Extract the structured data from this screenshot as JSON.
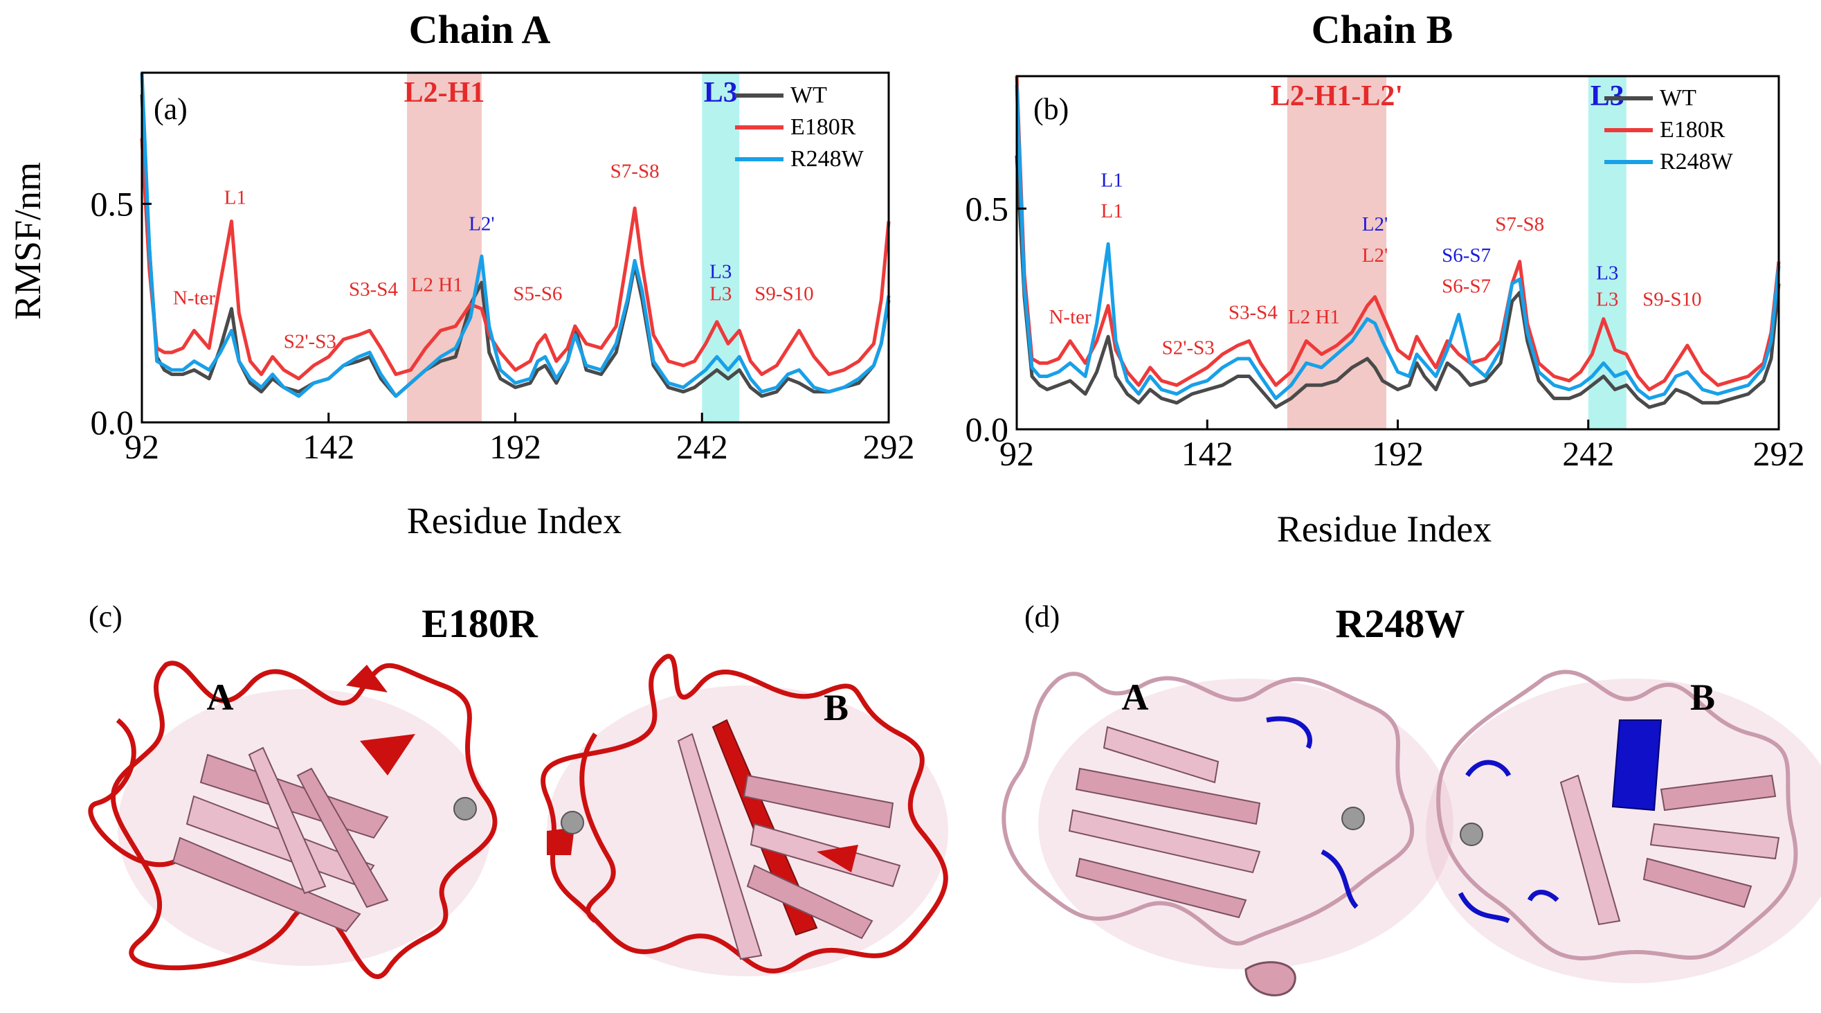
{
  "colors": {
    "wt": "#4a4a4a",
    "e180r": "#ee3a3a",
    "r248w": "#18a0e8",
    "red_text": "#e52a2a",
    "blue_text": "#1a1ad8",
    "region_pink": "#f2c9c6",
    "region_cyan": "#b5f3ef",
    "ribbon_pink": "#e9bccb",
    "ribbon_red": "#cc1010",
    "ribbon_blue": "#1010c8"
  },
  "chart_data": [
    {
      "type": "line",
      "panel": "(a)",
      "title": "Chain A",
      "xlabel": "Residue Index",
      "ylabel": "RMSF/nm",
      "xlim": [
        92,
        292
      ],
      "ylim": [
        0,
        0.8
      ],
      "xticks": [
        "92",
        "142",
        "192",
        "242",
        "292"
      ],
      "yticks": [
        "0.0",
        "0.5"
      ],
      "legend": [
        "WT",
        "E180R",
        "R248W"
      ],
      "regions": [
        {
          "label": "L2-H1",
          "x0": 163,
          "x1": 183,
          "color": "pink"
        },
        {
          "label": "L3",
          "x0": 242,
          "x1": 252,
          "color": "cyan"
        }
      ],
      "annotations": [
        {
          "text": "N-ter",
          "x": 106,
          "y": 0.27,
          "color": "red"
        },
        {
          "text": "L1",
          "x": 117,
          "y": 0.5,
          "color": "red"
        },
        {
          "text": "S2'-S3",
          "x": 137,
          "y": 0.17,
          "color": "red"
        },
        {
          "text": "S3-S4",
          "x": 154,
          "y": 0.29,
          "color": "red"
        },
        {
          "text": "L2 H1",
          "x": 171,
          "y": 0.3,
          "color": "red"
        },
        {
          "text": "L2'",
          "x": 183,
          "y": 0.44,
          "color": "blue"
        },
        {
          "text": "S5-S6",
          "x": 198,
          "y": 0.28,
          "color": "red"
        },
        {
          "text": "S7-S8",
          "x": 224,
          "y": 0.56,
          "color": "red"
        },
        {
          "text": "L3",
          "x": 247,
          "y": 0.33,
          "color": "blue"
        },
        {
          "text": "L3",
          "x": 247,
          "y": 0.28,
          "color": "red"
        },
        {
          "text": "S9-S10",
          "x": 264,
          "y": 0.28,
          "color": "red"
        }
      ],
      "series": [
        {
          "name": "WT",
          "x": [
            92,
            94,
            96,
            98,
            100,
            103,
            106,
            110,
            113,
            116,
            118,
            121,
            124,
            127,
            130,
            134,
            138,
            142,
            146,
            150,
            153,
            156,
            160,
            164,
            168,
            172,
            176,
            180,
            183,
            185,
            188,
            192,
            196,
            198,
            200,
            203,
            206,
            208,
            211,
            215,
            219,
            222,
            224,
            226,
            229,
            233,
            237,
            240,
            243,
            246,
            249,
            252,
            255,
            258,
            262,
            265,
            268,
            272,
            276,
            280,
            284,
            288,
            290,
            292
          ],
          "y": [
            0.75,
            0.4,
            0.15,
            0.12,
            0.11,
            0.11,
            0.12,
            0.1,
            0.17,
            0.26,
            0.14,
            0.09,
            0.07,
            0.1,
            0.08,
            0.07,
            0.09,
            0.1,
            0.13,
            0.14,
            0.15,
            0.1,
            0.06,
            0.09,
            0.12,
            0.14,
            0.15,
            0.27,
            0.32,
            0.16,
            0.1,
            0.08,
            0.09,
            0.12,
            0.13,
            0.09,
            0.14,
            0.22,
            0.12,
            0.11,
            0.16,
            0.27,
            0.36,
            0.28,
            0.13,
            0.08,
            0.07,
            0.08,
            0.1,
            0.12,
            0.1,
            0.12,
            0.08,
            0.06,
            0.07,
            0.1,
            0.09,
            0.07,
            0.07,
            0.08,
            0.09,
            0.13,
            0.18,
            0.28
          ]
        },
        {
          "name": "E180R",
          "x": [
            92,
            94,
            96,
            98,
            100,
            103,
            106,
            110,
            113,
            116,
            118,
            121,
            124,
            127,
            130,
            134,
            138,
            142,
            146,
            150,
            153,
            156,
            160,
            164,
            168,
            172,
            176,
            180,
            183,
            185,
            188,
            192,
            196,
            198,
            200,
            203,
            206,
            208,
            211,
            215,
            219,
            222,
            224,
            226,
            229,
            233,
            237,
            240,
            243,
            246,
            249,
            252,
            255,
            258,
            262,
            265,
            268,
            272,
            276,
            280,
            284,
            288,
            290,
            292
          ],
          "y": [
            0.65,
            0.35,
            0.17,
            0.16,
            0.16,
            0.17,
            0.21,
            0.17,
            0.32,
            0.46,
            0.25,
            0.14,
            0.11,
            0.15,
            0.12,
            0.1,
            0.13,
            0.15,
            0.19,
            0.2,
            0.21,
            0.17,
            0.11,
            0.12,
            0.17,
            0.21,
            0.22,
            0.27,
            0.26,
            0.2,
            0.16,
            0.12,
            0.14,
            0.18,
            0.2,
            0.14,
            0.17,
            0.22,
            0.18,
            0.17,
            0.22,
            0.38,
            0.49,
            0.36,
            0.2,
            0.14,
            0.13,
            0.14,
            0.18,
            0.23,
            0.18,
            0.21,
            0.14,
            0.11,
            0.13,
            0.17,
            0.21,
            0.15,
            0.11,
            0.12,
            0.14,
            0.18,
            0.28,
            0.46
          ]
        },
        {
          "name": "R248W",
          "x": [
            92,
            94,
            96,
            98,
            100,
            103,
            106,
            110,
            113,
            116,
            118,
            121,
            124,
            127,
            130,
            134,
            138,
            142,
            146,
            150,
            153,
            156,
            160,
            164,
            168,
            172,
            176,
            180,
            183,
            185,
            188,
            192,
            196,
            198,
            200,
            203,
            206,
            208,
            211,
            215,
            219,
            222,
            224,
            226,
            229,
            233,
            237,
            240,
            243,
            246,
            249,
            252,
            255,
            258,
            262,
            265,
            268,
            272,
            276,
            280,
            284,
            288,
            290,
            292
          ],
          "y": [
            0.8,
            0.4,
            0.14,
            0.13,
            0.12,
            0.12,
            0.14,
            0.12,
            0.16,
            0.21,
            0.14,
            0.1,
            0.08,
            0.11,
            0.08,
            0.06,
            0.09,
            0.1,
            0.13,
            0.15,
            0.16,
            0.11,
            0.06,
            0.09,
            0.12,
            0.15,
            0.17,
            0.24,
            0.38,
            0.22,
            0.12,
            0.09,
            0.1,
            0.14,
            0.15,
            0.1,
            0.14,
            0.2,
            0.13,
            0.12,
            0.18,
            0.28,
            0.37,
            0.3,
            0.14,
            0.09,
            0.08,
            0.1,
            0.12,
            0.15,
            0.12,
            0.15,
            0.1,
            0.07,
            0.08,
            0.11,
            0.12,
            0.08,
            0.07,
            0.08,
            0.1,
            0.13,
            0.18,
            0.29
          ]
        }
      ]
    },
    {
      "type": "line",
      "panel": "(b)",
      "title": "Chain B",
      "xlabel": "Residue Index",
      "ylabel": "",
      "xlim": [
        92,
        292
      ],
      "ylim": [
        0,
        0.8
      ],
      "xticks": [
        "92",
        "142",
        "192",
        "242",
        "292"
      ],
      "yticks": [
        "0.0",
        "0.5"
      ],
      "legend": [
        "WT",
        "E180R",
        "R248W"
      ],
      "regions": [
        {
          "label": "L2-H1-L2'",
          "x0": 163,
          "x1": 189,
          "color": "pink"
        },
        {
          "label": "L3",
          "x0": 242,
          "x1": 252,
          "color": "cyan"
        }
      ],
      "annotations": [
        {
          "text": "N-ter",
          "x": 106,
          "y": 0.24,
          "color": "red"
        },
        {
          "text": "L1",
          "x": 117,
          "y": 0.55,
          "color": "blue"
        },
        {
          "text": "L1",
          "x": 117,
          "y": 0.48,
          "color": "red"
        },
        {
          "text": "S2'-S3",
          "x": 137,
          "y": 0.17,
          "color": "red"
        },
        {
          "text": "S3-S4",
          "x": 154,
          "y": 0.25,
          "color": "red"
        },
        {
          "text": "L2 H1",
          "x": 170,
          "y": 0.24,
          "color": "red"
        },
        {
          "text": "L2'",
          "x": 186,
          "y": 0.45,
          "color": "blue"
        },
        {
          "text": "L2'",
          "x": 186,
          "y": 0.38,
          "color": "red"
        },
        {
          "text": "S6-S7",
          "x": 210,
          "y": 0.38,
          "color": "blue"
        },
        {
          "text": "S6-S7",
          "x": 210,
          "y": 0.31,
          "color": "red"
        },
        {
          "text": "S7-S8",
          "x": 224,
          "y": 0.45,
          "color": "red"
        },
        {
          "text": "L3",
          "x": 247,
          "y": 0.34,
          "color": "blue"
        },
        {
          "text": "L3",
          "x": 247,
          "y": 0.28,
          "color": "red"
        },
        {
          "text": "S9-S10",
          "x": 264,
          "y": 0.28,
          "color": "red"
        }
      ],
      "series": [
        {
          "name": "WT",
          "x": [
            92,
            94,
            96,
            98,
            100,
            103,
            106,
            110,
            113,
            116,
            118,
            121,
            124,
            127,
            130,
            134,
            138,
            142,
            146,
            150,
            153,
            156,
            160,
            164,
            168,
            172,
            176,
            180,
            184,
            186,
            188,
            192,
            195,
            197,
            199,
            202,
            205,
            208,
            211,
            215,
            219,
            222,
            224,
            226,
            229,
            233,
            237,
            240,
            243,
            246,
            249,
            252,
            255,
            258,
            262,
            265,
            268,
            272,
            276,
            280,
            284,
            288,
            290,
            292
          ],
          "y": [
            0.62,
            0.3,
            0.12,
            0.1,
            0.09,
            0.1,
            0.11,
            0.08,
            0.13,
            0.21,
            0.12,
            0.08,
            0.06,
            0.09,
            0.07,
            0.06,
            0.08,
            0.09,
            0.1,
            0.12,
            0.12,
            0.09,
            0.05,
            0.07,
            0.1,
            0.1,
            0.11,
            0.14,
            0.16,
            0.14,
            0.11,
            0.09,
            0.1,
            0.15,
            0.12,
            0.09,
            0.15,
            0.13,
            0.1,
            0.11,
            0.15,
            0.29,
            0.31,
            0.2,
            0.11,
            0.07,
            0.07,
            0.08,
            0.1,
            0.12,
            0.09,
            0.1,
            0.07,
            0.05,
            0.06,
            0.09,
            0.08,
            0.06,
            0.06,
            0.07,
            0.08,
            0.11,
            0.16,
            0.33
          ]
        },
        {
          "name": "E180R",
          "x": [
            92,
            94,
            96,
            98,
            100,
            103,
            106,
            110,
            113,
            116,
            118,
            121,
            124,
            127,
            130,
            134,
            138,
            142,
            146,
            150,
            153,
            156,
            160,
            164,
            168,
            172,
            176,
            180,
            184,
            186,
            188,
            192,
            195,
            197,
            199,
            202,
            205,
            208,
            211,
            215,
            219,
            222,
            224,
            226,
            229,
            233,
            237,
            240,
            243,
            246,
            249,
            252,
            255,
            258,
            262,
            265,
            268,
            272,
            276,
            280,
            284,
            288,
            290,
            292
          ],
          "y": [
            0.8,
            0.35,
            0.16,
            0.15,
            0.15,
            0.16,
            0.2,
            0.15,
            0.2,
            0.28,
            0.18,
            0.13,
            0.1,
            0.14,
            0.11,
            0.1,
            0.12,
            0.14,
            0.17,
            0.19,
            0.2,
            0.15,
            0.1,
            0.13,
            0.2,
            0.17,
            0.19,
            0.22,
            0.28,
            0.3,
            0.26,
            0.18,
            0.16,
            0.21,
            0.18,
            0.14,
            0.2,
            0.17,
            0.15,
            0.16,
            0.2,
            0.33,
            0.38,
            0.24,
            0.15,
            0.12,
            0.11,
            0.13,
            0.17,
            0.25,
            0.18,
            0.17,
            0.12,
            0.09,
            0.11,
            0.15,
            0.19,
            0.13,
            0.1,
            0.11,
            0.12,
            0.15,
            0.22,
            0.38
          ]
        },
        {
          "name": "R248W",
          "x": [
            92,
            94,
            96,
            98,
            100,
            103,
            106,
            110,
            113,
            116,
            118,
            121,
            124,
            127,
            130,
            134,
            138,
            142,
            146,
            150,
            153,
            156,
            160,
            164,
            168,
            172,
            176,
            180,
            184,
            186,
            188,
            192,
            195,
            197,
            199,
            202,
            205,
            208,
            211,
            215,
            219,
            222,
            224,
            226,
            229,
            233,
            237,
            240,
            243,
            246,
            249,
            252,
            255,
            258,
            262,
            265,
            268,
            272,
            276,
            280,
            284,
            288,
            290,
            292
          ],
          "y": [
            0.78,
            0.32,
            0.14,
            0.12,
            0.12,
            0.13,
            0.15,
            0.12,
            0.24,
            0.42,
            0.2,
            0.11,
            0.08,
            0.12,
            0.09,
            0.08,
            0.1,
            0.11,
            0.14,
            0.16,
            0.16,
            0.12,
            0.07,
            0.1,
            0.15,
            0.14,
            0.17,
            0.2,
            0.25,
            0.24,
            0.2,
            0.13,
            0.12,
            0.17,
            0.15,
            0.12,
            0.18,
            0.26,
            0.15,
            0.12,
            0.18,
            0.33,
            0.34,
            0.22,
            0.13,
            0.1,
            0.09,
            0.1,
            0.12,
            0.15,
            0.12,
            0.13,
            0.09,
            0.07,
            0.08,
            0.12,
            0.13,
            0.09,
            0.08,
            0.09,
            0.1,
            0.14,
            0.2,
            0.37
          ]
        }
      ]
    }
  ],
  "structures": [
    {
      "panel": "(c)",
      "title": "E180R",
      "chains": [
        "A",
        "B"
      ]
    },
    {
      "panel": "(d)",
      "title": "R248W",
      "chains": [
        "A",
        "B"
      ]
    }
  ]
}
